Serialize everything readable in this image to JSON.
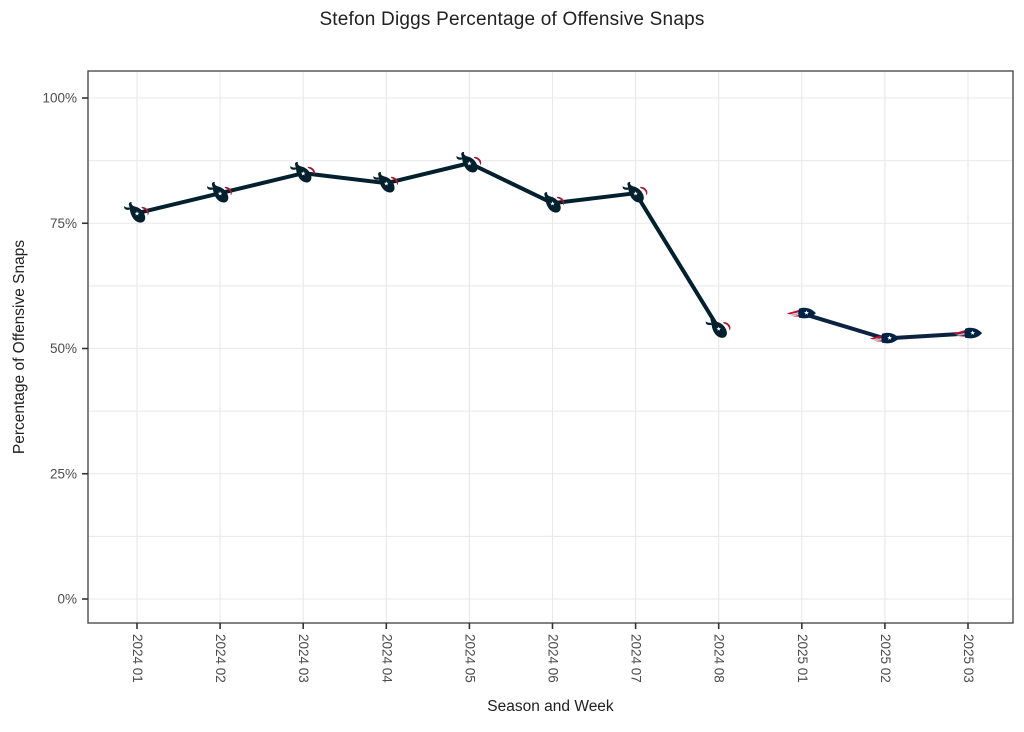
{
  "title": "Stefon Diggs Percentage of Offensive Snaps",
  "chart_data": {
    "type": "line",
    "title": "Stefon Diggs Percentage of Offensive Snaps",
    "xlabel": "Season and Week",
    "ylabel": "Percentage of Offensive Snaps",
    "categories": [
      "2024 01",
      "2024 02",
      "2024 03",
      "2024 04",
      "2024 05",
      "2024 06",
      "2024 07",
      "2024 08",
      "2025 01",
      "2025 02",
      "2025 03"
    ],
    "y_ticks": [
      0,
      25,
      50,
      75,
      100
    ],
    "y_tick_labels": [
      "0%",
      "25%",
      "50%",
      "75%",
      "100%"
    ],
    "y_minor_step": 12.5,
    "ylim": [
      0,
      100
    ],
    "grid": "on",
    "legend": "none",
    "series": [
      {
        "marker": "texans-logo",
        "line_color": "#03202f",
        "categories": [
          "2024 01",
          "2024 02",
          "2024 03",
          "2024 04",
          "2024 05",
          "2024 06",
          "2024 07",
          "2024 08"
        ],
        "values": [
          77,
          81,
          85,
          83,
          87,
          79,
          81,
          54
        ]
      },
      {
        "marker": "patriots-logo",
        "line_color": "#0b2240",
        "categories": [
          "2025 01",
          "2025 02",
          "2025 03"
        ],
        "values": [
          57,
          52,
          53
        ]
      }
    ]
  },
  "colors": {
    "background": "#ffffff",
    "grid": "#e8e8e8",
    "panel_border": "#4d4d4d",
    "tick_mark": "#333333",
    "tick_label": "#4d4d4d",
    "title_text": "#212121",
    "texans_navy": "#03202f",
    "texans_red": "#a71930",
    "patriots_navy": "#002244",
    "patriots_red": "#c60c30",
    "patriots_silver": "#b0b7bc"
  }
}
